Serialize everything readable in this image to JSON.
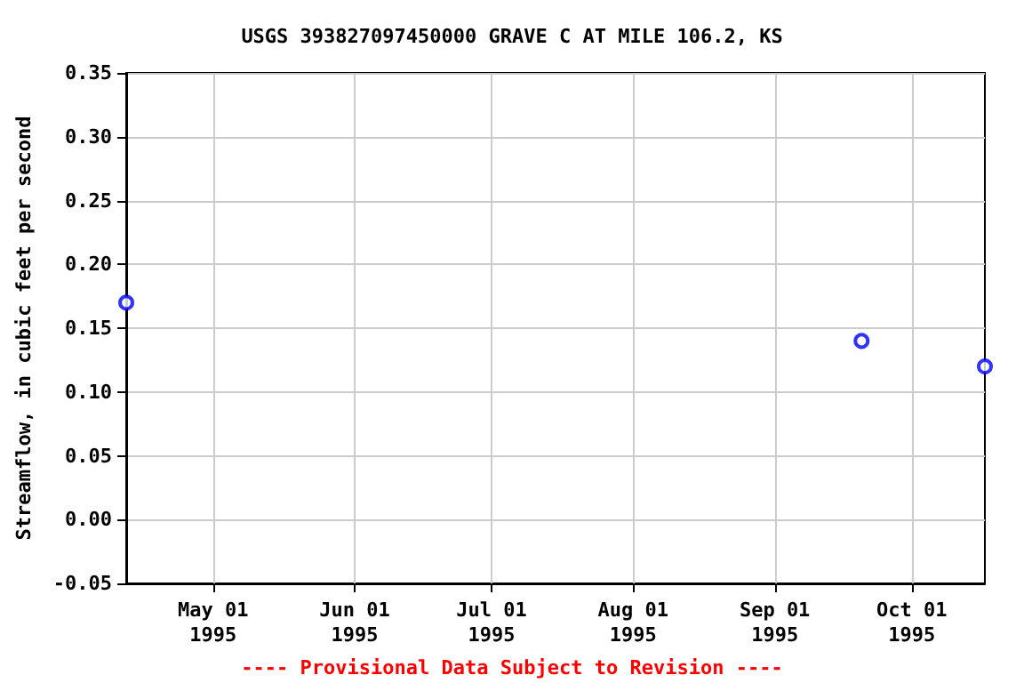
{
  "chart_data": {
    "type": "scatter",
    "title": "USGS 393827097450000 GRAVE C AT MILE 106.2, KS",
    "ylabel": "Streamflow, in cubic feet per second",
    "annotations": [
      "---- Provisional Data Subject to Revision ----"
    ],
    "x": [
      "1995-04-12",
      "1995-09-20",
      "1995-10-17"
    ],
    "series": [
      {
        "color": "#0000ff",
        "values": [
          0.17,
          0.14,
          0.12
        ]
      }
    ],
    "xlim": [
      "1995-04-12",
      "1995-10-17"
    ],
    "xticks": [
      {
        "value": "1995-05-01",
        "label": "May 01\n1995"
      },
      {
        "value": "1995-06-01",
        "label": "Jun 01\n1995"
      },
      {
        "value": "1995-07-01",
        "label": "Jul 01\n1995"
      },
      {
        "value": "1995-08-01",
        "label": "Aug 01\n1995"
      },
      {
        "value": "1995-09-01",
        "label": "Sep 01\n1995"
      },
      {
        "value": "1995-10-01",
        "label": "Oct 01\n1995"
      }
    ],
    "ylim": [
      -0.05,
      0.35
    ],
    "yticks": [
      -0.05,
      {
        "value": 0,
        "label": "0.00"
      },
      0.05,
      {
        "value": 0.1,
        "label": "0.10"
      },
      0.15,
      {
        "value": 0.2,
        "label": "0.20"
      },
      0.25,
      {
        "value": 0.3,
        "label": "0.30"
      },
      0.35
    ],
    "grid": true,
    "marker": "circle"
  }
}
